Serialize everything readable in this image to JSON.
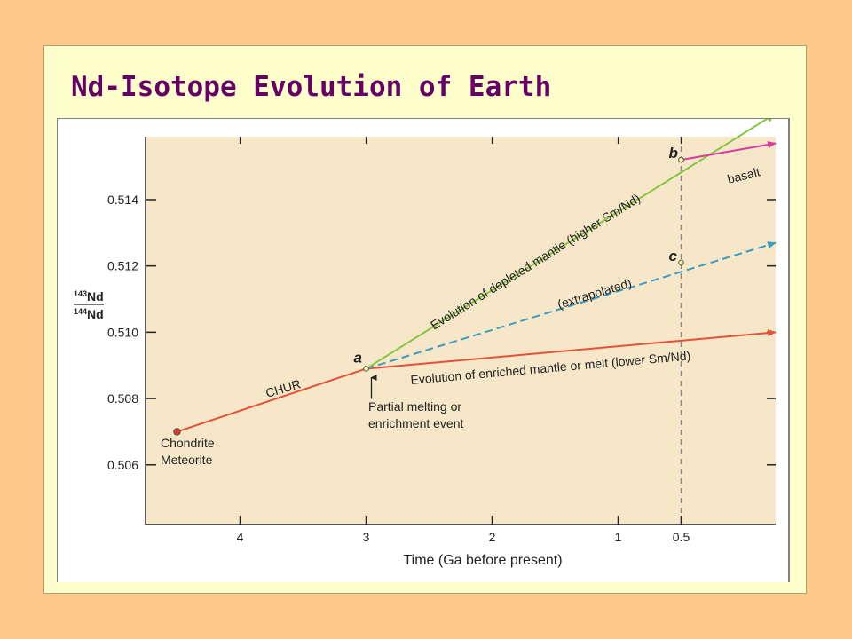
{
  "slide": {
    "title": "Nd-Isotope Evolution of Earth"
  },
  "chart_data": {
    "type": "line",
    "xlabel": "Time (Ga before present)",
    "ylabel_top": "143Nd",
    "ylabel_bottom": "144Nd",
    "xlim": [
      4.75,
      -0.25
    ],
    "ylim": [
      0.5042,
      0.5159
    ],
    "x_ticks": [
      {
        "value": 4,
        "label": "4"
      },
      {
        "value": 3,
        "label": "3"
      },
      {
        "value": 2,
        "label": "2"
      },
      {
        "value": 1,
        "label": "1"
      },
      {
        "value": 0.5,
        "label": "0.5"
      }
    ],
    "y_ticks": [
      {
        "value": 0.506,
        "label": "0.506"
      },
      {
        "value": 0.508,
        "label": "0.508"
      },
      {
        "value": 0.51,
        "label": "0.510"
      },
      {
        "value": 0.512,
        "label": "0.512"
      },
      {
        "value": 0.514,
        "label": "0.514"
      }
    ],
    "reference_line": {
      "x": 0.5
    },
    "series": [
      {
        "name": "CHUR",
        "color": "#e8503a",
        "dashed": false,
        "x": [
          4.5,
          3.0,
          -0.25
        ],
        "y": [
          0.507,
          0.5089,
          0.51
        ]
      },
      {
        "name": "Evolution of depleted mantle (higher Sm/Nd)",
        "color": "#88c540",
        "dashed": false,
        "x": [
          3.0,
          -0.25
        ],
        "y": [
          0.5089,
          0.5166
        ]
      },
      {
        "name": "(extrapolated)",
        "color": "#3a9cc4",
        "dashed": true,
        "x": [
          3.0,
          -0.25
        ],
        "y": [
          0.5089,
          0.5127
        ]
      },
      {
        "name": "basalt",
        "color": "#d63da0",
        "dashed": false,
        "x": [
          0.5,
          -0.25
        ],
        "y": [
          0.5152,
          0.5157
        ]
      }
    ],
    "points": [
      {
        "label": "Chondrite Meteorite",
        "x": 4.5,
        "y": 0.507,
        "color": "#e03c2c"
      },
      {
        "label": "a",
        "x": 3.0,
        "y": 0.5089,
        "color": "#fff5a0"
      },
      {
        "label": "b",
        "x": 0.5,
        "y": 0.5152,
        "color": "#fff5a0"
      },
      {
        "label": "c",
        "x": 0.5,
        "y": 0.5121,
        "color": "#fff5a0"
      }
    ],
    "annotations": {
      "chur": "CHUR",
      "depleted": "Evolution of depleted mantle (higher Sm/Nd)",
      "extrapolated": "(extrapolated)",
      "enriched": "Evolution of enriched mantle or melt (lower Sm/Nd)",
      "basalt": "basalt",
      "event_line1": "Partial melting or",
      "event_line2": "enrichment event",
      "meteorite_line1": "Chondrite",
      "meteorite_line2": "Meteorite",
      "point_a": "a",
      "point_b": "b",
      "point_c": "c"
    },
    "colors": {
      "plot_background": "#f5e7c8",
      "axis": "#222222",
      "dashed_reference": "#888888"
    }
  }
}
